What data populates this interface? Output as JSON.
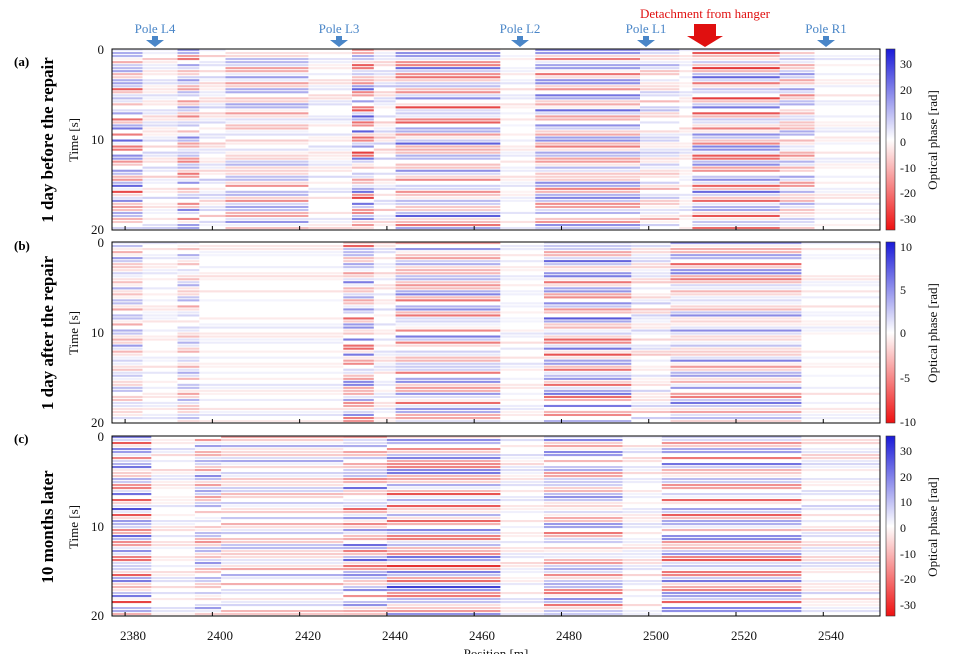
{
  "chart_data": {
    "type": "heatmap",
    "xlabel": "Position [m]",
    "xlim": [
      2377,
      2553
    ],
    "x_ticks": [
      "2380",
      "2400",
      "2420",
      "2440",
      "2460",
      "2480",
      "2500",
      "2520",
      "2540"
    ],
    "x_tick_values": [
      2380,
      2400,
      2420,
      2440,
      2460,
      2480,
      2500,
      2520,
      2540
    ],
    "annotations": {
      "poles": [
        {
          "label": "Pole L4",
          "x": 2386
        },
        {
          "label": "Pole L3",
          "x": 2429
        },
        {
          "label": "Pole L2",
          "x": 2470
        },
        {
          "label": "Pole L1",
          "x": 2498
        }
      ],
      "pole_r1": {
        "label": "Pole R1",
        "x": 2539
      },
      "detachment": {
        "label": "Detachment from hanger",
        "x": 2511
      },
      "pole_color": "#4a86c8",
      "detachment_color": "#e01010"
    },
    "panels": [
      {
        "letter": "(a)",
        "row_label": "1 day before the repair",
        "ylabel": "Time [s]",
        "ylim": [
          0,
          20
        ],
        "y_ticks": [
          "0",
          "10",
          "20"
        ],
        "colorbar": {
          "label": "Optical phase [rad]",
          "range": [
            -35,
            35
          ],
          "ticks": [
            "30",
            "20",
            "10",
            "0",
            "-10",
            "-20",
            "-30"
          ]
        },
        "activity": [
          [
            2377,
            2384,
            0.9
          ],
          [
            2384,
            2392,
            0.25
          ],
          [
            2392,
            2397,
            0.7
          ],
          [
            2397,
            2403,
            0.3
          ],
          [
            2403,
            2422,
            0.55
          ],
          [
            2422,
            2432,
            0.2
          ],
          [
            2432,
            2437,
            0.95
          ],
          [
            2437,
            2442,
            0.3
          ],
          [
            2442,
            2466,
            0.9
          ],
          [
            2466,
            2474,
            0.15
          ],
          [
            2474,
            2498,
            0.75
          ],
          [
            2498,
            2507,
            0.4
          ],
          [
            2507,
            2510,
            0.2
          ],
          [
            2510,
            2530,
            1.0
          ],
          [
            2530,
            2538,
            0.6
          ],
          [
            2538,
            2553,
            0.15
          ]
        ]
      },
      {
        "letter": "(b)",
        "row_label": "1 day after the repair",
        "ylabel": "Time [s]",
        "ylim": [
          0,
          20
        ],
        "y_ticks": [
          "0",
          "10",
          "20"
        ],
        "colorbar": {
          "label": "Optical phase [rad]",
          "range": [
            -10,
            10
          ],
          "ticks": [
            "10",
            "5",
            "0",
            "-5",
            "-10"
          ]
        },
        "activity": [
          [
            2377,
            2384,
            0.55
          ],
          [
            2384,
            2392,
            0.15
          ],
          [
            2392,
            2397,
            0.45
          ],
          [
            2397,
            2430,
            0.15
          ],
          [
            2430,
            2437,
            0.8
          ],
          [
            2437,
            2442,
            0.2
          ],
          [
            2442,
            2466,
            0.7
          ],
          [
            2466,
            2476,
            0.15
          ],
          [
            2476,
            2496,
            0.9
          ],
          [
            2496,
            2505,
            0.3
          ],
          [
            2505,
            2535,
            0.7
          ],
          [
            2535,
            2553,
            0.15
          ]
        ]
      },
      {
        "letter": "(c)",
        "row_label": "10 months later",
        "ylabel": "Time [s]",
        "ylim": [
          0,
          20
        ],
        "y_ticks": [
          "0",
          "10",
          "20"
        ],
        "colorbar": {
          "label": "Optical phase [rad]",
          "range": [
            -35,
            35
          ],
          "ticks": [
            "30",
            "20",
            "10",
            "0",
            "-10",
            "-20",
            "-30"
          ]
        },
        "activity": [
          [
            2377,
            2386,
            0.9
          ],
          [
            2386,
            2396,
            0.2
          ],
          [
            2396,
            2402,
            0.6
          ],
          [
            2402,
            2430,
            0.45
          ],
          [
            2430,
            2440,
            0.8
          ],
          [
            2440,
            2466,
            0.95
          ],
          [
            2466,
            2476,
            0.2
          ],
          [
            2476,
            2494,
            0.7
          ],
          [
            2494,
            2503,
            0.2
          ],
          [
            2503,
            2535,
            0.8
          ],
          [
            2535,
            2553,
            0.25
          ]
        ]
      }
    ]
  }
}
